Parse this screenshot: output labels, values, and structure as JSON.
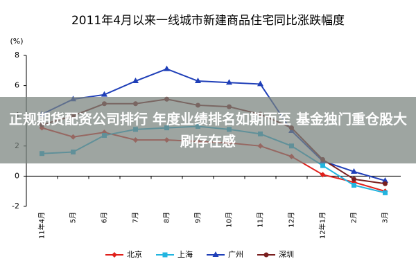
{
  "chart_data": {
    "type": "line",
    "title": "2011年4月以来一线城市新建商品住宅同比涨跌幅度",
    "y_label": "(%)",
    "categories": [
      "11年4月",
      "5月",
      "6月",
      "7月",
      "8月",
      "9月",
      "10月",
      "11月",
      "12月",
      "12年1月",
      "2月",
      "3月"
    ],
    "series": [
      {
        "name": "北京",
        "color": "#e0201b",
        "marker": "diamond",
        "values": [
          3.2,
          2.6,
          2.9,
          2.4,
          2.4,
          2.3,
          2.2,
          2.0,
          1.3,
          0.1,
          -0.4,
          -1.0
        ]
      },
      {
        "name": "上海",
        "color": "#22b5e0",
        "marker": "square",
        "values": [
          1.5,
          1.6,
          2.7,
          3.1,
          3.2,
          3.3,
          3.1,
          2.8,
          2.0,
          0.7,
          -0.6,
          -1.1
        ]
      },
      {
        "name": "广州",
        "color": "#1f3fb8",
        "marker": "triangle",
        "values": [
          4.1,
          5.1,
          5.4,
          6.3,
          7.1,
          6.3,
          6.2,
          6.1,
          3.0,
          1.0,
          0.3,
          -0.3
        ]
      },
      {
        "name": "深圳",
        "color": "#7a1f1f",
        "marker": "circle",
        "values": [
          3.4,
          4.0,
          4.8,
          4.8,
          5.1,
          4.7,
          4.6,
          4.1,
          3.2,
          1.1,
          -0.2,
          -0.5
        ]
      }
    ],
    "ylim": [
      -2,
      8
    ],
    "yticks": [
      -2,
      0,
      2,
      4,
      6,
      8
    ],
    "legend": "bottom"
  },
  "banner": "正规期货配资公司排行 年度业绩排名如期而至 基金独门重仓股大刷存在感"
}
